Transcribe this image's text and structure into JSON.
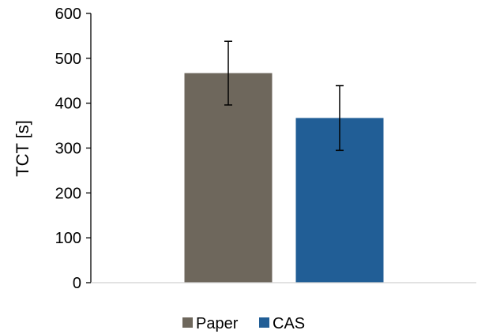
{
  "chart_data": {
    "type": "bar",
    "title": "",
    "xlabel": "",
    "ylabel": "TCT [s]",
    "ylim": [
      0,
      600
    ],
    "yticks": [
      0,
      100,
      200,
      300,
      400,
      500,
      600
    ],
    "grid": false,
    "legend_position": "bottom",
    "series": [
      {
        "name": "Paper",
        "value": 467,
        "error": 71,
        "color": "#6e675c"
      },
      {
        "name": "CAS",
        "value": 367,
        "error": 72,
        "color": "#215e96"
      }
    ]
  }
}
